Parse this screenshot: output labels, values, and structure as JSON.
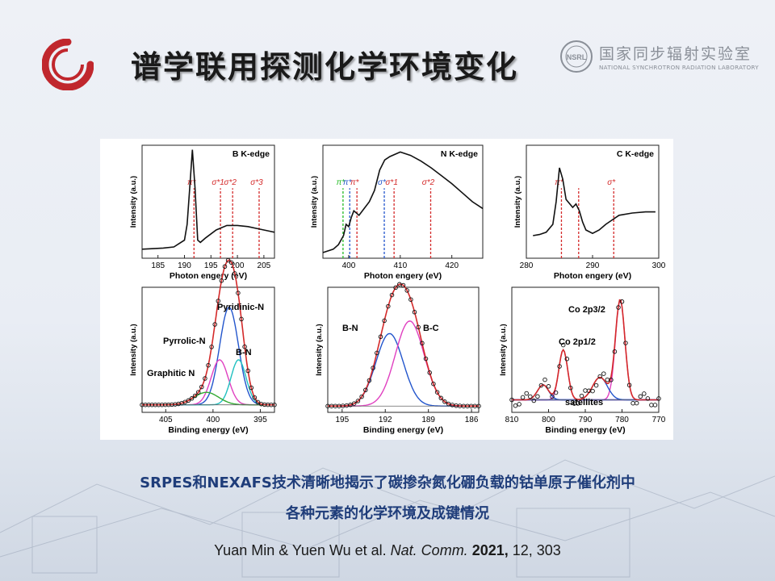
{
  "slide": {
    "title": "谱学联用探测化学环境变化",
    "lab_name_cn": "国家同步辐射实验室",
    "lab_name_en": "NATIONAL SYNCHROTRON RADIATION LABORATORY",
    "lab_logo_text": "NSRL",
    "caption_line1": "SRPES和NEXAFS技术清晰地揭示了碳掺杂氮化硼负载的钴单原子催化剂中",
    "caption_line2": "各种元素的化学环境及成键情况",
    "citation": {
      "authors": "Yuan Min & Yuen Wu et al.",
      "journal": "Nat. Comm.",
      "year": "2021,",
      "rest": "12, 303"
    },
    "colors": {
      "caption": "#1f3d7a",
      "logo_red": "#c0272d"
    }
  },
  "chart_data": [
    {
      "type": "line",
      "title": "B K-edge",
      "xlabel": "Photon engery (eV)",
      "ylabel": "Intensity (a.u.)",
      "xlim": [
        182,
        207
      ],
      "xticks": [
        185,
        190,
        195,
        200,
        205
      ],
      "x": [
        182,
        186,
        188,
        189,
        190,
        190.5,
        191,
        191.5,
        192,
        192.5,
        193,
        194,
        196,
        198,
        200,
        202,
        204,
        206,
        207
      ],
      "y": [
        0.08,
        0.09,
        0.1,
        0.13,
        0.16,
        0.3,
        0.62,
        0.96,
        0.62,
        0.16,
        0.14,
        0.18,
        0.25,
        0.29,
        0.29,
        0.28,
        0.26,
        0.24,
        0.23
      ],
      "markers": [
        {
          "label": "π*",
          "x": 191.8,
          "color": "#d42a2a"
        },
        {
          "label": "σ*1",
          "x": 196.8,
          "color": "#d42a2a"
        },
        {
          "label": "σ*2",
          "x": 199.1,
          "color": "#d42a2a"
        },
        {
          "label": "σ*3",
          "x": 204.1,
          "color": "#d42a2a"
        }
      ]
    },
    {
      "type": "line",
      "title": "N K-edge",
      "xlabel": "Photon engery (eV)",
      "ylabel": "Intensity (a.u.)",
      "xlim": [
        395,
        426
      ],
      "xticks": [
        400,
        410,
        420
      ],
      "x": [
        395,
        397,
        398,
        399,
        399.5,
        400,
        400.5,
        401,
        402,
        403,
        404,
        405,
        406,
        407,
        408,
        410,
        412,
        414,
        416,
        418,
        420,
        422,
        424,
        426
      ],
      "y": [
        0.05,
        0.08,
        0.12,
        0.2,
        0.3,
        0.28,
        0.36,
        0.42,
        0.38,
        0.44,
        0.5,
        0.6,
        0.78,
        0.87,
        0.9,
        0.94,
        0.91,
        0.86,
        0.8,
        0.73,
        0.66,
        0.58,
        0.5,
        0.44
      ],
      "markers": [
        {
          "label": "π*",
          "x": 398.9,
          "color": "#22bb22"
        },
        {
          "label": "π*",
          "x": 400.2,
          "color": "#2255cc"
        },
        {
          "label": "π*",
          "x": 401.6,
          "color": "#d42a2a"
        },
        {
          "label": "σ*",
          "x": 406.9,
          "color": "#2255cc"
        },
        {
          "label": "σ*1",
          "x": 408.8,
          "color": "#d42a2a"
        },
        {
          "label": "σ*2",
          "x": 415.9,
          "color": "#d42a2a"
        }
      ]
    },
    {
      "type": "line",
      "title": "C K-edge",
      "xlabel": "Photon engery (eV)",
      "ylabel": "Intensity (a.u.)",
      "xlim": [
        280,
        300
      ],
      "xticks": [
        280,
        290,
        300
      ],
      "x": [
        281,
        282,
        283,
        284,
        284.5,
        285,
        285.5,
        286,
        287,
        287.5,
        288,
        288.5,
        289,
        290,
        291,
        292,
        293,
        294,
        296,
        298,
        299.5
      ],
      "y": [
        0.2,
        0.21,
        0.23,
        0.3,
        0.5,
        0.8,
        0.7,
        0.52,
        0.45,
        0.48,
        0.42,
        0.32,
        0.25,
        0.22,
        0.25,
        0.3,
        0.34,
        0.38,
        0.4,
        0.41,
        0.41
      ],
      "markers": [
        {
          "label": "π*",
          "x": 285.3,
          "color": "#d42a2a"
        },
        {
          "label": "",
          "x": 287.9,
          "color": "#d42a2a"
        },
        {
          "label": "σ*",
          "x": 293.2,
          "color": "#d42a2a"
        }
      ]
    },
    {
      "type": "line",
      "title": "",
      "xlabel": "Binding energy (eV)",
      "ylabel": "Intensity (a.u.)",
      "xlim": [
        407.5,
        393.5
      ],
      "xticks": [
        405,
        400,
        395
      ],
      "annotations": [
        "Pyridinic-N",
        "Pyrrolic-N",
        "B-N",
        "Graphitic N"
      ],
      "peaks": [
        {
          "center": 398.3,
          "height": 0.78,
          "width": 1.0,
          "color": "#2255cc"
        },
        {
          "center": 399.3,
          "height": 0.36,
          "width": 0.9,
          "color": "#e040c0"
        },
        {
          "center": 397.3,
          "height": 0.36,
          "width": 0.8,
          "color": "#20c0c0"
        },
        {
          "center": 400.7,
          "height": 0.1,
          "width": 1.3,
          "color": "#33aa33"
        }
      ],
      "baseline": 0.06
    },
    {
      "type": "line",
      "title": "",
      "xlabel": "Binding energy (eV)",
      "ylabel": "Intensity (a.u.)",
      "xlim": [
        196,
        185.5
      ],
      "xticks": [
        195,
        192,
        189,
        186
      ],
      "annotations": [
        "B-N",
        "B-C"
      ],
      "peaks": [
        {
          "center": 191.7,
          "height": 0.58,
          "width": 0.95,
          "color": "#2255cc"
        },
        {
          "center": 190.3,
          "height": 0.68,
          "width": 1.0,
          "color": "#e040c0"
        }
      ],
      "baseline": 0.05
    },
    {
      "type": "line",
      "title": "",
      "xlabel": "Binding energy (eV)",
      "ylabel": "Intensity (a.u.)",
      "xlim": [
        810,
        770
      ],
      "xticks": [
        810,
        800,
        790,
        780,
        770
      ],
      "annotations": [
        "Co 2p3/2",
        "Co 2p1/2",
        "satellites"
      ],
      "peaks": [
        {
          "center": 796.0,
          "height": 0.4,
          "width": 1.2,
          "color": "#e040c0"
        },
        {
          "center": 780.5,
          "height": 0.8,
          "width": 1.3,
          "color": "#e040c0"
        },
        {
          "center": 801.5,
          "height": 0.12,
          "width": 1.5,
          "color": "#2255cc"
        },
        {
          "center": 786.0,
          "height": 0.18,
          "width": 2.0,
          "color": "#2255cc"
        }
      ],
      "baseline": 0.1
    }
  ]
}
